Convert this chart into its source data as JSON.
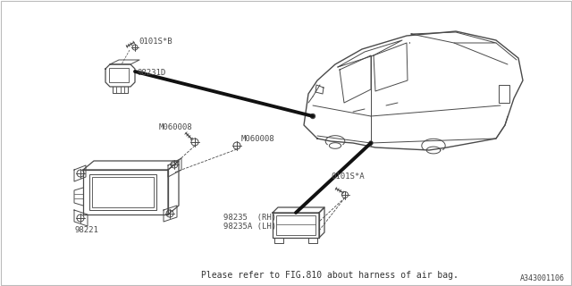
{
  "bg_color": "#ffffff",
  "border_color": "#bbbbbb",
  "dc": "#4a4a4a",
  "black": "#111111",
  "footer_text": "Please refer to FIG.810 about harness of air bag.",
  "ref_code": "A343001106",
  "labels": {
    "ref_b": "0101S*B",
    "part1": "98231D",
    "part2": "98221",
    "bolt1": "M060008",
    "bolt2": "M060008",
    "part3_rh": "98235  (RH)",
    "part3_lh": "98235A (LH)",
    "ref_a": "0101S*A"
  },
  "fig_size": [
    6.4,
    3.2
  ],
  "dpi": 100
}
